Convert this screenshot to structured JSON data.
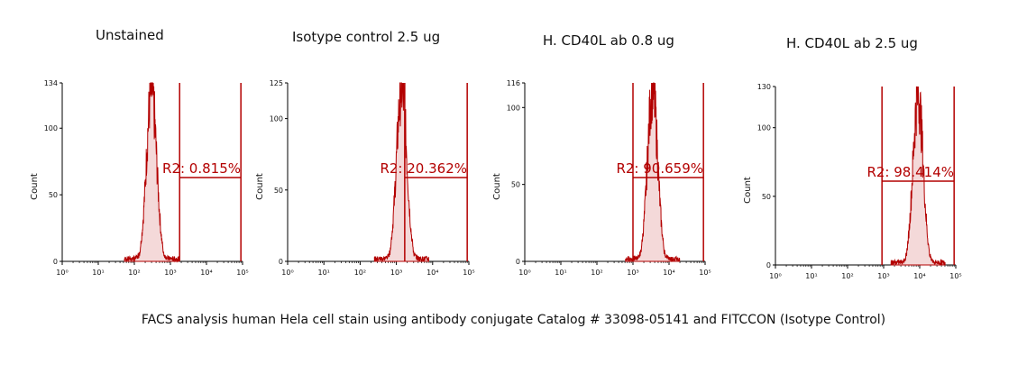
{
  "caption": "FACS analysis human Hela cell stain using antibody conjugate Catalog # 33098-05141 and FITCCON (Isotype Control)",
  "colors": {
    "histogram": "#b30000",
    "gate": "#b30000",
    "axis": "#000000"
  },
  "chart_data": [
    {
      "type": "area",
      "title": "Unstained",
      "ylabel": "Count",
      "xscale": "log",
      "xlim": [
        1,
        100000
      ],
      "ylim": [
        0,
        134
      ],
      "yticks": [
        0,
        50,
        100,
        134
      ],
      "xticks": [
        1,
        10,
        100,
        1000,
        10000,
        100000
      ],
      "peak": {
        "center": 300,
        "height": 128
      },
      "gate": {
        "name": "R2",
        "start": 1800,
        "end": 90000,
        "label": "R2: 0.815%"
      }
    },
    {
      "type": "area",
      "title": "Isotype control 2.5 ug",
      "ylabel": "Count",
      "xscale": "log",
      "xlim": [
        1,
        100000
      ],
      "ylim": [
        0,
        125
      ],
      "yticks": [
        0,
        50,
        100,
        125
      ],
      "xticks": [
        1,
        10,
        100,
        1000,
        10000,
        100000
      ],
      "peak": {
        "center": 1400,
        "height": 122
      },
      "gate": {
        "name": "R2",
        "start": 1700,
        "end": 90000,
        "label": "R2: 20.362%"
      }
    },
    {
      "type": "area",
      "title": "H. CD40L ab 0.8 ug",
      "ylabel": "Count",
      "xscale": "log",
      "xlim": [
        1,
        100000
      ],
      "ylim": [
        0,
        116
      ],
      "yticks": [
        0,
        50,
        100,
        116
      ],
      "xticks": [
        1,
        10,
        100,
        1000,
        10000,
        100000
      ],
      "peak": {
        "center": 3500,
        "height": 112
      },
      "gate": {
        "name": "R2",
        "start": 1000,
        "end": 90000,
        "label": "R2: 90.659%"
      }
    },
    {
      "type": "area",
      "title": "H. CD40L ab 2.5 ug",
      "ylabel": "Count",
      "xscale": "log",
      "xlim": [
        1,
        100000
      ],
      "ylim": [
        0,
        130
      ],
      "yticks": [
        0,
        50,
        100,
        130
      ],
      "xticks": [
        1,
        10,
        100,
        1000,
        10000,
        100000
      ],
      "peak": {
        "center": 9000,
        "height": 124
      },
      "gate": {
        "name": "R2",
        "start": 900,
        "end": 90000,
        "label": "R2: 98.414%"
      }
    }
  ]
}
